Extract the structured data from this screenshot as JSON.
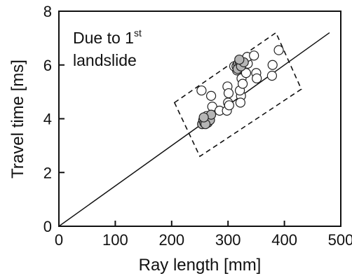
{
  "chart_data": {
    "type": "scatter",
    "title": "",
    "xlabel": "Ray length [mm]",
    "ylabel": "Travel time [ms]",
    "xlim": [
      0,
      500
    ],
    "ylim": [
      0,
      8
    ],
    "xticks": [
      0,
      100,
      200,
      300,
      400,
      500
    ],
    "yticks": [
      0,
      2,
      4,
      6,
      8
    ],
    "xtick_labels": [
      "0",
      "100",
      "200",
      "300",
      "400",
      "500"
    ],
    "ytick_labels": [
      "0",
      "2",
      "4",
      "6",
      "8"
    ],
    "grid": false,
    "annotation": {
      "line1_main": "Due to 1",
      "line1_sup": "st",
      "line2": "landslide"
    },
    "reference_line": {
      "x": [
        0,
        480
      ],
      "y": [
        0,
        7.2
      ]
    },
    "highlight_box": {
      "corners": [
        [
          205,
          4.6
        ],
        [
          385,
          7.2
        ],
        [
          430,
          5.1
        ],
        [
          250,
          2.6
        ]
      ],
      "style": "dashed"
    },
    "series": [
      {
        "marker": "open-circle",
        "points": [
          [
            253,
            5.05
          ],
          [
            262,
            4.1
          ],
          [
            270,
            4.85
          ],
          [
            272,
            4.45
          ],
          [
            285,
            4.3
          ],
          [
            298,
            4.3
          ],
          [
            300,
            4.6
          ],
          [
            302,
            4.5
          ],
          [
            299,
            5.2
          ],
          [
            301,
            4.95
          ],
          [
            323,
            4.85
          ],
          [
            321,
            5.05
          ],
          [
            324,
            5.5
          ],
          [
            322,
            4.6
          ],
          [
            326,
            5.3
          ],
          [
            335,
            6.05
          ],
          [
            334,
            6.3
          ],
          [
            346,
            6.35
          ],
          [
            350,
            5.7
          ],
          [
            351,
            5.5
          ],
          [
            378,
            5.6
          ],
          [
            379,
            6.0
          ],
          [
            390,
            6.55
          ],
          [
            316,
            5.8
          ],
          [
            311,
            5.95
          ],
          [
            332,
            5.7
          ]
        ]
      },
      {
        "marker": "grey-filled-circle",
        "points": [
          [
            254,
            3.8
          ],
          [
            256,
            3.95
          ],
          [
            258,
            3.85
          ],
          [
            260,
            4.0
          ],
          [
            262,
            3.9
          ],
          [
            264,
            3.85
          ],
          [
            266,
            4.05
          ],
          [
            268,
            3.95
          ],
          [
            270,
            4.15
          ],
          [
            260,
            3.8
          ],
          [
            257,
            4.05
          ],
          [
            315,
            5.95
          ],
          [
            318,
            6.05
          ],
          [
            321,
            6.1
          ],
          [
            317,
            5.85
          ],
          [
            323,
            5.95
          ],
          [
            328,
            6.1
          ],
          [
            320,
            6.2
          ]
        ]
      }
    ]
  }
}
